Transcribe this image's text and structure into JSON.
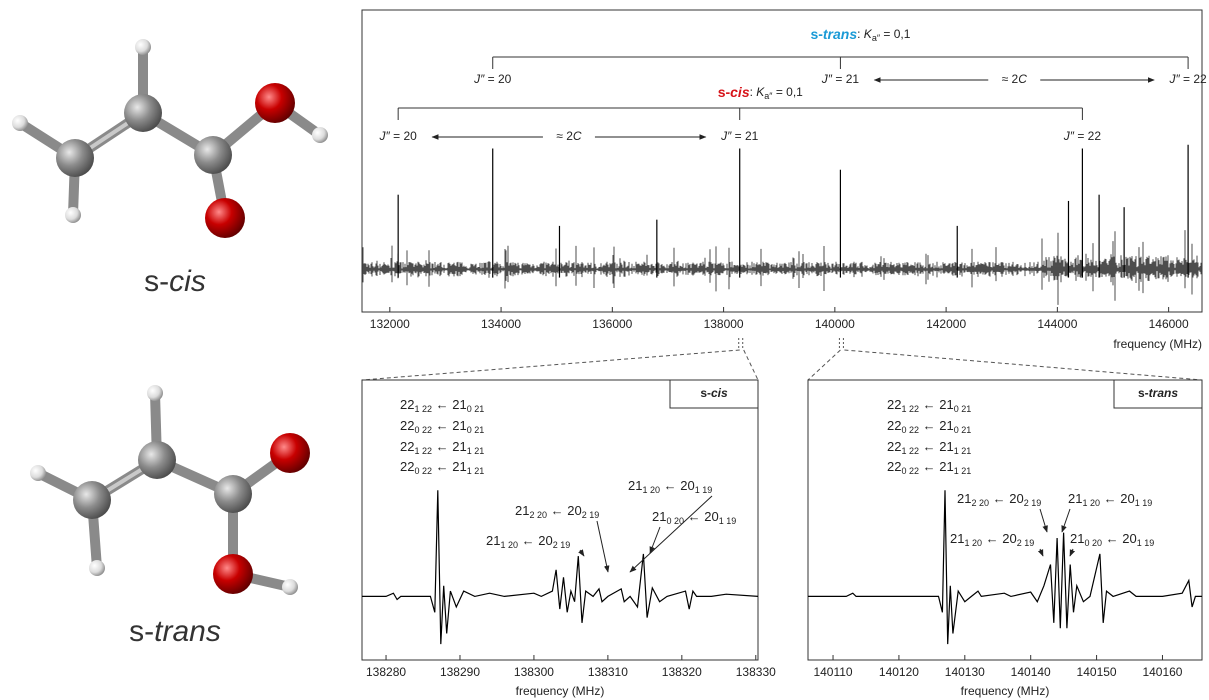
{
  "molecules": [
    {
      "label": [
        "s-",
        "cis"
      ]
    },
    {
      "label": [
        "s-",
        "trans"
      ]
    }
  ],
  "chart_data": [
    {
      "type": "stick",
      "x": [
        132150,
        133850,
        135050,
        136800,
        138290,
        140100,
        142200,
        144200,
        144450,
        144750,
        145200,
        146350
      ],
      "values": [
        0.6,
        0.97,
        0.35,
        0.4,
        0.97,
        0.8,
        0.35,
        0.55,
        0.97,
        0.6,
        0.5,
        1.0
      ],
      "color": "#000000",
      "xlim": [
        131500,
        146600
      ],
      "ylim": [
        -0.34,
        2.08
      ],
      "xticks": [
        132000,
        134000,
        136000,
        138000,
        140000,
        142000,
        144000,
        146000
      ],
      "x_label": "frequency (MHz)",
      "progressions": [
        {
          "name": [
            "s-",
            "trans"
          ],
          "color": "#1a9ad6",
          "text": [
            ": ",
            "K",
            "a″",
            " = 0,1"
          ],
          "x": [
            133850,
            140100,
            146350
          ],
          "labels": [
            [
              "J″",
              " = 20"
            ],
            [
              "J″",
              " = 21"
            ],
            [
              "J″",
              " = 22"
            ]
          ],
          "spacing": [
            "≈ 2",
            "C"
          ]
        },
        {
          "name": [
            "s-",
            "cis"
          ],
          "color": "#d7141a",
          "text": [
            ": ",
            "K",
            "a″",
            " = 0,1"
          ],
          "x": [
            132150,
            138290,
            144450
          ],
          "labels": [
            [
              "J″",
              " = 20"
            ],
            [
              "J″",
              " = 21"
            ],
            [
              "J″",
              " = 22"
            ]
          ],
          "spacing": [
            "≈ 2",
            "C"
          ]
        }
      ]
    },
    {
      "type": "line",
      "x": [
        138276.75,
        138280,
        138281,
        138281.5,
        138282,
        138286,
        138286.6,
        138287,
        138287.4,
        138287.8,
        138288.2,
        138288.7,
        138289.5,
        138290.5,
        138292,
        138294,
        138296,
        138300,
        138301,
        138302.5,
        138303,
        138303.5,
        138304,
        138304.5,
        138305,
        138305.5,
        138306,
        138306.5,
        138307,
        138308,
        138308.8,
        138309.2,
        138310,
        138311.8,
        138312.2,
        138313,
        138314,
        138314.8,
        138315.3,
        138316,
        138317,
        138318,
        138320.5,
        138321,
        138321.5,
        138322,
        138324,
        138326,
        138330.3
      ],
      "values": [
        0,
        0,
        0.03,
        -0.03,
        0,
        0,
        -0.15,
        1.0,
        -0.45,
        0.1,
        -0.35,
        0.05,
        -0.1,
        0.05,
        0,
        0.03,
        0,
        0.03,
        0,
        0.05,
        0.25,
        -0.12,
        0.18,
        -0.15,
        0.05,
        -0.05,
        0.38,
        -0.25,
        0.05,
        0,
        0.07,
        -0.05,
        0,
        0.07,
        -0.05,
        0,
        -0.1,
        0.4,
        -0.2,
        0.08,
        -0.05,
        0,
        0.05,
        -0.12,
        0.05,
        0,
        0,
        0.02,
        0
      ],
      "color": "#000000",
      "xlim": [
        138276.75,
        138330.3
      ],
      "ylim": [
        -0.6,
        2.04
      ],
      "xticks": [
        138280,
        138290,
        138300,
        138310,
        138320,
        138330
      ],
      "x_label": "frequency (MHz)",
      "tag": [
        "s-",
        "cis"
      ],
      "tag_color": "#d7141a",
      "transitions": [
        [
          "22",
          "1 22",
          " ← ",
          "21",
          "0 21"
        ],
        [
          "22",
          "0 22",
          " ← ",
          "21",
          "0 21"
        ],
        [
          "22",
          "1 22",
          " ← ",
          "21",
          "1 21"
        ],
        [
          "22",
          "0 22",
          " ← ",
          "21",
          "1 21"
        ],
        [
          "21",
          "2 20",
          " ← ",
          "20",
          "2 19"
        ],
        [
          "21",
          "1 20",
          " ← ",
          "20",
          "1 19"
        ],
        [
          "21",
          "1 20",
          " ← ",
          "20",
          "2 19"
        ],
        [
          "21",
          "0 20",
          " ← ",
          "20",
          "1 19"
        ]
      ]
    },
    {
      "type": "line",
      "x": [
        140106.2,
        140112,
        140113,
        140113.5,
        140126,
        140126.6,
        140127,
        140127.4,
        140127.8,
        140128.2,
        140129,
        140130,
        140131,
        140132,
        140132.5,
        140136,
        140137,
        140140,
        140141,
        140142,
        140143,
        140143.5,
        140144,
        140144.5,
        140145,
        140145.5,
        140146,
        140146.5,
        140147,
        140148,
        140149,
        140150.5,
        140151,
        140151.5,
        140152.5,
        140155,
        140156,
        140160,
        140163,
        140164,
        140164.5,
        140165,
        140166
      ],
      "values": [
        0,
        0,
        0.03,
        0,
        0,
        -0.15,
        1.0,
        -0.45,
        0.1,
        -0.35,
        0.05,
        -0.05,
        0,
        0.05,
        0,
        0.03,
        0,
        0.04,
        -0.05,
        0.1,
        0.3,
        -0.25,
        0.55,
        -0.3,
        0.6,
        -0.3,
        0.3,
        -0.15,
        0.1,
        -0.05,
        0,
        0.4,
        -0.25,
        0.05,
        0,
        0.05,
        0,
        0,
        0.03,
        0.15,
        -0.1,
        0,
        0
      ],
      "color": "#000000",
      "xlim": [
        140106.2,
        140166
      ],
      "ylim": [
        -0.6,
        2.04
      ],
      "xticks": [
        140110,
        140120,
        140130,
        140140,
        140150,
        140160
      ],
      "x_label": "frequency (MHz)",
      "tag": [
        "s-",
        "trans"
      ],
      "tag_color": "#1a9ad6",
      "transitions": [
        [
          "22",
          "1 22",
          " ← ",
          "21",
          "0 21"
        ],
        [
          "22",
          "0 22",
          " ← ",
          "21",
          "0 21"
        ],
        [
          "22",
          "1 22",
          " ← ",
          "21",
          "1 21"
        ],
        [
          "22",
          "0 22",
          " ← ",
          "21",
          "1 21"
        ],
        [
          "21",
          "2 20",
          " ← ",
          "20",
          "2 19"
        ],
        [
          "21",
          "1 20",
          " ← ",
          "20",
          "1 19"
        ],
        [
          "21",
          "1 20",
          " ← ",
          "20",
          "2 19"
        ],
        [
          "21",
          "0 20",
          " ← ",
          "20",
          "1 19"
        ]
      ]
    }
  ]
}
